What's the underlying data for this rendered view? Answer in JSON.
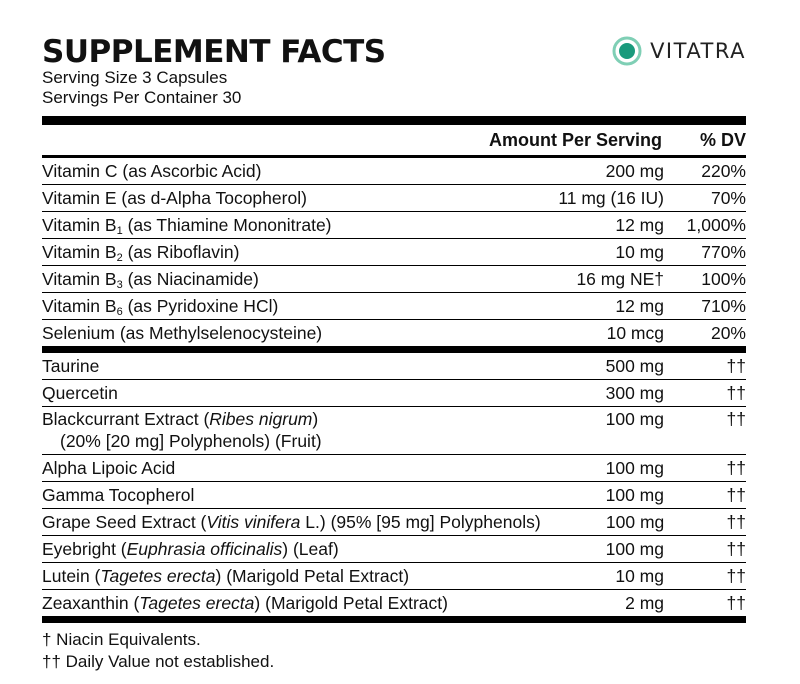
{
  "header": {
    "title": "SUPPLEMENT FACTS",
    "serving_size": "Serving Size 3 Capsules",
    "servings_per_container": "Servings Per Container 30",
    "brand": "VITATRA",
    "brand_color": "#1a9a7c"
  },
  "columns": {
    "amount": "Amount Per Serving",
    "dv": "% DV"
  },
  "vitamins": [
    {
      "name_pre": "Vitamin C (as Ascorbic Acid)",
      "sub": "",
      "name_post": "",
      "amount": "200 mg",
      "dv": "220%"
    },
    {
      "name_pre": "Vitamin E (as d-Alpha Tocopherol)",
      "sub": "",
      "name_post": "",
      "amount": "11 mg (16 IU)",
      "dv": "70%"
    },
    {
      "name_pre": "Vitamin B",
      "sub": "1",
      "name_post": " (as Thiamine Mononitrate)",
      "amount": "12 mg",
      "dv": "1,000%"
    },
    {
      "name_pre": "Vitamin B",
      "sub": "2",
      "name_post": " (as Riboflavin)",
      "amount": "10 mg",
      "dv": "770%"
    },
    {
      "name_pre": "Vitamin B",
      "sub": "3",
      "name_post": " (as Niacinamide)",
      "amount": "16 mg NE†",
      "dv": "100%"
    },
    {
      "name_pre": "Vitamin B",
      "sub": "6",
      "name_post": " (as Pyridoxine HCl)",
      "amount": "12 mg",
      "dv": "710%"
    },
    {
      "name_pre": "Selenium (as Methylselenocysteine)",
      "sub": "",
      "name_post": "",
      "amount": "10 mcg",
      "dv": "20%"
    }
  ],
  "others": [
    {
      "pre": "Taurine",
      "ital": "",
      "post": "",
      "amount": "500 mg",
      "dv": "††"
    },
    {
      "pre": "Quercetin",
      "ital": "",
      "post": "",
      "amount": "300 mg",
      "dv": "††"
    },
    {
      "pre": "Blackcurrant Extract (",
      "ital": "Ribes nigrum",
      "post": ")",
      "line2": "(20% [20 mg] Polyphenols) (Fruit)",
      "amount": "100 mg",
      "dv": "††"
    },
    {
      "pre": "Alpha Lipoic Acid",
      "ital": "",
      "post": "",
      "amount": "100 mg",
      "dv": "††"
    },
    {
      "pre": "Gamma Tocopherol",
      "ital": "",
      "post": "",
      "amount": "100 mg",
      "dv": "††"
    },
    {
      "pre": "Grape Seed Extract (",
      "ital": "Vitis vinifera",
      "post": " L.) (95% [95 mg] Polyphenols)",
      "amount": "100 mg",
      "dv": "††"
    },
    {
      "pre": "Eyebright (",
      "ital": "Euphrasia officinalis",
      "post": ") (Leaf)",
      "amount": "100 mg",
      "dv": "††"
    },
    {
      "pre": "Lutein (",
      "ital": "Tagetes erecta",
      "post": ") (Marigold Petal Extract)",
      "amount": "10 mg",
      "dv": "††"
    },
    {
      "pre": "Zeaxanthin (",
      "ital": "Tagetes erecta",
      "post": ") (Marigold Petal Extract)",
      "amount": "2 mg",
      "dv": "††"
    }
  ],
  "footnotes": [
    "† Niacin Equivalents.",
    "†† Daily Value not established."
  ]
}
